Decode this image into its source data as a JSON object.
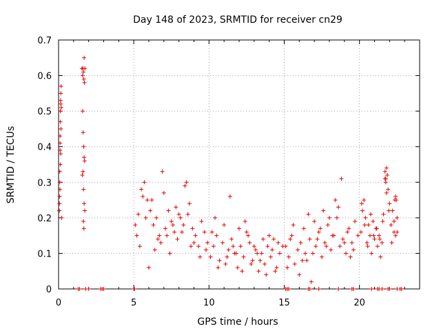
{
  "chart_data": {
    "type": "scatter",
    "title": "Day 148 of 2023, SRMTID for receiver cn29",
    "xlabel": "GPS time / hours",
    "ylabel": "SRMTID / TECUs",
    "xlim": [
      0,
      24
    ],
    "ylim": [
      0,
      0.7
    ],
    "xticks": [
      0,
      5,
      10,
      15,
      20
    ],
    "yticks": [
      0,
      0.1,
      0.2,
      0.3,
      0.4,
      0.5,
      0.6,
      0.7
    ],
    "xtick_labels": [
      "0",
      "5",
      "10",
      "15",
      "20"
    ],
    "ytick_labels": [
      "0",
      "0.1",
      "0.2",
      "0.3",
      "0.4",
      "0.5",
      "0.6",
      "0.7"
    ],
    "grid": true,
    "marker": "+",
    "color": "#e00000",
    "series": [
      {
        "name": "SRMTID",
        "x": [
          0.05,
          0.07,
          0.08,
          0.1,
          0.1,
          0.12,
          0.13,
          0.15,
          0.17,
          0.08,
          0.1,
          0.12,
          0.15,
          0.18,
          0.06,
          0.09,
          0.11,
          0.14,
          0.16,
          0.2,
          1.55,
          1.6,
          1.62,
          1.65,
          1.68,
          1.7,
          1.72,
          1.75,
          1.6,
          1.63,
          1.67,
          1.7,
          1.73,
          1.58,
          1.62,
          1.66,
          1.7,
          1.74,
          1.65,
          1.68,
          5.1,
          5.2,
          5.3,
          5.5,
          5.7,
          5.9,
          6.1,
          6.3,
          6.5,
          6.7,
          6.9,
          7.1,
          7.3,
          7.5,
          7.7,
          7.9,
          8.1,
          8.3,
          8.5,
          8.7,
          8.9,
          9.1,
          9.3,
          9.5,
          9.7,
          9.9,
          5.4,
          5.8,
          6.2,
          6.6,
          7.0,
          7.4,
          7.8,
          8.2,
          8.6,
          9.0,
          9.4,
          9.8,
          6.0,
          6.8,
          7.6,
          8.4,
          5.6,
          6.4,
          7.2,
          8.0,
          8.8,
          10.1,
          10.3,
          10.5,
          10.7,
          10.9,
          11.1,
          11.3,
          11.5,
          11.7,
          11.9,
          12.1,
          12.3,
          12.5,
          12.7,
          12.9,
          13.1,
          13.3,
          13.5,
          13.7,
          13.9,
          14.1,
          14.3,
          14.5,
          14.7,
          14.9,
          10.2,
          10.6,
          11.0,
          11.4,
          11.8,
          12.2,
          12.6,
          13.0,
          13.4,
          13.8,
          14.2,
          14.6,
          10.4,
          11.2,
          12.0,
          12.8,
          13.6,
          14.4,
          11.6,
          12.4,
          13.2,
          14.0,
          15.1,
          15.3,
          15.5,
          15.7,
          15.9,
          16.1,
          16.3,
          16.5,
          16.7,
          16.9,
          17.1,
          17.3,
          17.5,
          17.7,
          17.9,
          18.1,
          18.3,
          18.5,
          18.7,
          18.9,
          19.1,
          19.3,
          19.5,
          19.7,
          19.9,
          15.2,
          15.6,
          16.0,
          16.4,
          16.8,
          17.2,
          17.6,
          18.0,
          18.4,
          18.8,
          19.2,
          19.6,
          15.4,
          16.2,
          17.0,
          17.8,
          18.6,
          19.4,
          16.6,
          17.4,
          18.2,
          19.0,
          20.1,
          20.2,
          20.3,
          20.4,
          20.5,
          20.6,
          20.7,
          20.8,
          20.9,
          21.0,
          21.1,
          21.2,
          21.3,
          21.4,
          21.5,
          21.6,
          21.7,
          21.8,
          21.9,
          22.0,
          22.1,
          22.2,
          22.3,
          22.4,
          22.5,
          20.15,
          20.35,
          20.55,
          20.75,
          20.95,
          21.15,
          21.35,
          21.55,
          21.75,
          21.95,
          22.15,
          22.35,
          21.7,
          21.75,
          21.8,
          21.85,
          22.3,
          22.4,
          22.45,
          22.5,
          1.3,
          1.4,
          1.8,
          2.0,
          2.8,
          2.9,
          3.0,
          5.0,
          5.05,
          15.1,
          15.2,
          15.3,
          16.6,
          16.7,
          17.3,
          18.6,
          19.5,
          19.6,
          20.8,
          21.2,
          21.3,
          21.5,
          21.9,
          22.0,
          22.5,
          22.7,
          22.8
        ],
        "y": [
          0.22,
          0.26,
          0.3,
          0.39,
          0.43,
          0.47,
          0.53,
          0.55,
          0.57,
          0.33,
          0.41,
          0.5,
          0.52,
          0.51,
          0.24,
          0.28,
          0.35,
          0.38,
          0.45,
          0.2,
          0.62,
          0.6,
          0.62,
          0.61,
          0.59,
          0.65,
          0.58,
          0.62,
          0.5,
          0.44,
          0.4,
          0.37,
          0.36,
          0.32,
          0.33,
          0.28,
          0.24,
          0.22,
          0.19,
          0.17,
          0.18,
          0.15,
          0.21,
          0.28,
          0.3,
          0.25,
          0.22,
          0.18,
          0.2,
          0.15,
          0.33,
          0.17,
          0.22,
          0.19,
          0.16,
          0.14,
          0.2,
          0.18,
          0.3,
          0.24,
          0.17,
          0.15,
          0.12,
          0.19,
          0.16,
          0.13,
          0.12,
          0.2,
          0.25,
          0.14,
          0.27,
          0.1,
          0.23,
          0.16,
          0.21,
          0.13,
          0.09,
          0.11,
          0.06,
          0.13,
          0.18,
          0.29,
          0.26,
          0.11,
          0.15,
          0.21,
          0.12,
          0.09,
          0.12,
          0.15,
          0.08,
          0.13,
          0.07,
          0.11,
          0.14,
          0.1,
          0.06,
          0.12,
          0.09,
          0.16,
          0.13,
          0.08,
          0.11,
          0.05,
          0.1,
          0.07,
          0.12,
          0.09,
          0.14,
          0.06,
          0.1,
          0.12,
          0.16,
          0.06,
          0.18,
          0.26,
          0.1,
          0.05,
          0.15,
          0.12,
          0.08,
          0.04,
          0.11,
          0.13,
          0.2,
          0.09,
          0.17,
          0.07,
          0.14,
          0.05,
          0.12,
          0.19,
          0.1,
          0.15,
          0.12,
          0.09,
          0.15,
          0.07,
          0.11,
          0.13,
          0.17,
          0.08,
          0.14,
          0.1,
          0.12,
          0.16,
          0.09,
          0.13,
          0.18,
          0.11,
          0.15,
          0.2,
          0.12,
          0.14,
          0.1,
          0.17,
          0.13,
          0.19,
          0.15,
          0.06,
          0.18,
          0.04,
          0.1,
          0.02,
          0.14,
          0.22,
          0.2,
          0.25,
          0.31,
          0.16,
          0.11,
          0.14,
          0.08,
          0.19,
          0.12,
          0.23,
          0.09,
          0.21,
          0.17,
          0.15,
          0.13,
          0.16,
          0.22,
          0.25,
          0.2,
          0.13,
          0.18,
          0.15,
          0.1,
          0.19,
          0.14,
          0.17,
          0.12,
          0.15,
          0.09,
          0.13,
          0.21,
          0.31,
          0.34,
          0.28,
          0.24,
          0.18,
          0.22,
          0.16,
          0.26,
          0.2,
          0.24,
          0.18,
          0.12,
          0.21,
          0.15,
          0.17,
          0.14,
          0.19,
          0.3,
          0.22,
          0.13,
          0.25,
          0.33,
          0.31,
          0.27,
          0.32,
          0.19,
          0.15,
          0.25,
          0.16,
          0,
          0,
          0,
          0,
          0,
          0,
          0,
          0,
          0,
          0,
          0,
          0,
          0,
          0,
          0,
          0,
          0,
          0,
          0,
          0,
          0,
          0,
          0,
          0,
          0,
          0,
          0
        ]
      }
    ]
  }
}
